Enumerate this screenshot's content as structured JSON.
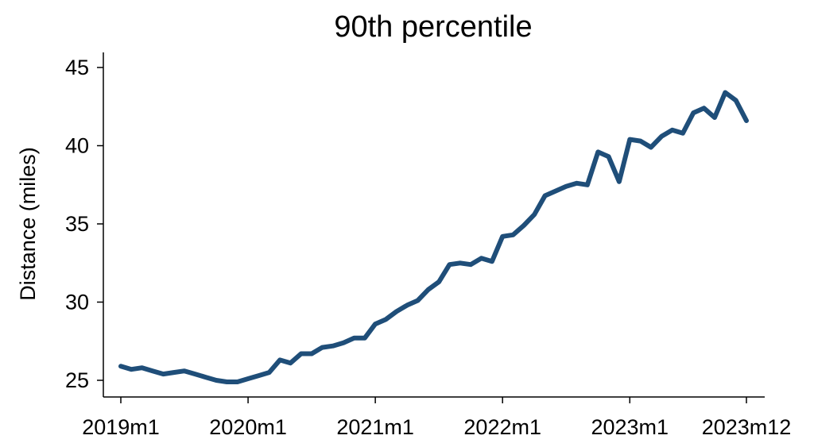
{
  "chart_data": {
    "type": "line",
    "title": "90th percentile",
    "xlabel": "",
    "ylabel": "Distance (miles)",
    "ylim": [
      25,
      45
    ],
    "grid": false,
    "x_ticks": [
      "2019m1",
      "2020m1",
      "2021m1",
      "2022m1",
      "2023m1",
      "2023m12"
    ],
    "y_ticks": [
      25,
      30,
      35,
      40,
      45
    ],
    "colors": {
      "line": "#1f4e79"
    },
    "series": [
      {
        "x": [
          "2019m1",
          "2019m2",
          "2019m3",
          "2019m4",
          "2019m5",
          "2019m6",
          "2019m7",
          "2019m8",
          "2019m9",
          "2019m10",
          "2019m11",
          "2019m12",
          "2020m1",
          "2020m2",
          "2020m3",
          "2020m4",
          "2020m5",
          "2020m6",
          "2020m7",
          "2020m8",
          "2020m9",
          "2020m10",
          "2020m11",
          "2020m12",
          "2021m1",
          "2021m2",
          "2021m3",
          "2021m4",
          "2021m5",
          "2021m6",
          "2021m7",
          "2021m8",
          "2021m9",
          "2021m10",
          "2021m11",
          "2021m12",
          "2022m1",
          "2022m2",
          "2022m3",
          "2022m4",
          "2022m5",
          "2022m6",
          "2022m7",
          "2022m8",
          "2022m9",
          "2022m10",
          "2022m11",
          "2022m12",
          "2023m1",
          "2023m2",
          "2023m3",
          "2023m4",
          "2023m5",
          "2023m6",
          "2023m7",
          "2023m8",
          "2023m9",
          "2023m10",
          "2023m11",
          "2023m12"
        ],
        "values": [
          25.9,
          25.7,
          25.8,
          25.6,
          25.4,
          25.5,
          25.6,
          25.4,
          25.2,
          25.0,
          24.9,
          24.9,
          25.1,
          25.3,
          25.5,
          26.3,
          26.1,
          26.7,
          26.7,
          27.1,
          27.2,
          27.4,
          27.7,
          27.7,
          28.6,
          28.9,
          29.4,
          29.8,
          30.1,
          30.8,
          31.3,
          32.4,
          32.5,
          32.4,
          32.8,
          32.6,
          34.2,
          34.3,
          34.9,
          35.6,
          36.8,
          37.1,
          37.4,
          37.6,
          37.5,
          39.6,
          39.3,
          37.7,
          40.4,
          40.3,
          39.9,
          40.6,
          41.0,
          40.8,
          42.1,
          42.4,
          41.8,
          43.4,
          42.9,
          41.6
        ]
      }
    ]
  }
}
